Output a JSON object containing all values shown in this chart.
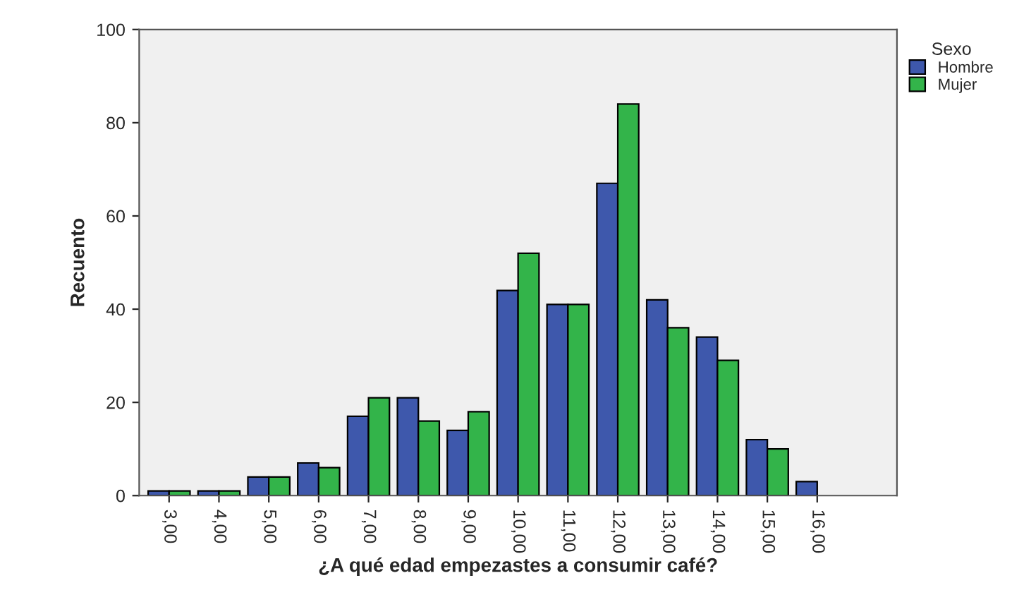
{
  "chart_data": {
    "type": "bar",
    "xlabel": "¿A qué edad empezastes a consumir café?",
    "ylabel": "Recuento",
    "legend_title": "Sexo",
    "legend": "top right",
    "categories": [
      "3,00",
      "4,00",
      "5,00",
      "6,00",
      "7,00",
      "8,00",
      "9,00",
      "10,00",
      "11,00",
      "12,00",
      "13,00",
      "14,00",
      "15,00",
      "16,00"
    ],
    "series": [
      {
        "name": "Hombre",
        "color": "#3e58ac",
        "values": [
          1,
          1,
          4,
          7,
          17,
          21,
          14,
          44,
          41,
          67,
          42,
          34,
          12,
          3
        ]
      },
      {
        "name": "Mujer",
        "color": "#33b44a",
        "values": [
          1,
          1,
          4,
          6,
          21,
          16,
          18,
          52,
          41,
          84,
          36,
          29,
          10,
          null
        ]
      }
    ],
    "ylim": [
      0,
      100
    ],
    "yticks": [
      0,
      20,
      40,
      60,
      80,
      100
    ],
    "grid": false
  }
}
